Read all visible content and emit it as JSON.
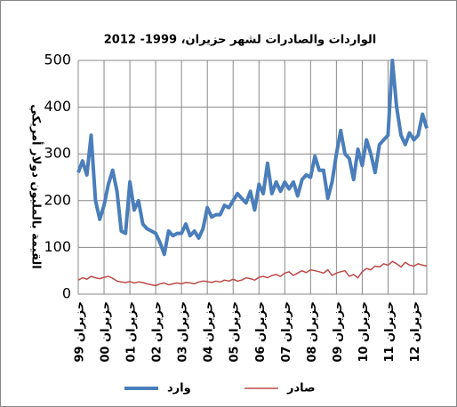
{
  "chart_data": {
    "type": "line",
    "title": "الواردات والصادرات لشهر حزيران، 1999- 2012",
    "y_label": "القيمة بالمليون دولار أمريكي",
    "categories": [
      "حزيران 99",
      null,
      null,
      null,
      null,
      null,
      "حزيران 00",
      null,
      null,
      null,
      null,
      null,
      "حزيران 01",
      null,
      null,
      null,
      null,
      null,
      "حزيران 02",
      null,
      null,
      null,
      null,
      null,
      "حزيران 03",
      null,
      null,
      null,
      null,
      null,
      "حزيران 04",
      null,
      null,
      null,
      null,
      null,
      "حزيران 05",
      null,
      null,
      null,
      null,
      null,
      "حزيران 06",
      null,
      null,
      null,
      null,
      null,
      "حزيران 07",
      null,
      null,
      null,
      null,
      null,
      "حزيران 08",
      null,
      null,
      null,
      null,
      null,
      "حزيران 09",
      null,
      null,
      null,
      null,
      null,
      "حزيران 10",
      null,
      null,
      null,
      null,
      null,
      "حزيران 11",
      null,
      null,
      null,
      null,
      null,
      "حزيران 12",
      null,
      null,
      null
    ],
    "series": [
      {
        "name": "وارد",
        "color": "#4a7ebb",
        "width": 4,
        "values": [
          260,
          285,
          255,
          340,
          200,
          160,
          190,
          235,
          265,
          220,
          135,
          130,
          240,
          180,
          200,
          150,
          140,
          135,
          130,
          110,
          85,
          135,
          125,
          130,
          130,
          150,
          125,
          135,
          120,
          140,
          185,
          165,
          170,
          170,
          190,
          185,
          200,
          215,
          205,
          195,
          220,
          180,
          235,
          215,
          280,
          215,
          240,
          220,
          240,
          225,
          240,
          210,
          245,
          255,
          250,
          295,
          265,
          265,
          205,
          240,
          300,
          350,
          300,
          290,
          245,
          310,
          275,
          330,
          300,
          260,
          320,
          330,
          340,
          500,
          400,
          340,
          320,
          345,
          330,
          340,
          385,
          355
        ]
      },
      {
        "name": "صادر",
        "color": "#be4b48",
        "width": 1.5,
        "values": [
          30,
          35,
          32,
          38,
          35,
          33,
          36,
          38,
          34,
          28,
          26,
          25,
          27,
          24,
          26,
          25,
          22,
          20,
          18,
          22,
          24,
          20,
          22,
          24,
          22,
          25,
          24,
          22,
          26,
          28,
          27,
          25,
          28,
          26,
          30,
          28,
          32,
          28,
          30,
          35,
          33,
          30,
          36,
          38,
          35,
          40,
          42,
          38,
          45,
          48,
          40,
          45,
          50,
          46,
          52,
          50,
          48,
          45,
          52,
          40,
          45,
          48,
          50,
          38,
          42,
          35,
          48,
          55,
          52,
          60,
          58,
          65,
          62,
          70,
          65,
          58,
          68,
          62,
          60,
          65,
          62,
          60
        ]
      }
    ],
    "ylim": [
      0,
      500
    ],
    "yticks": [
      0,
      100,
      200,
      300,
      400,
      500
    ],
    "grid": true
  }
}
